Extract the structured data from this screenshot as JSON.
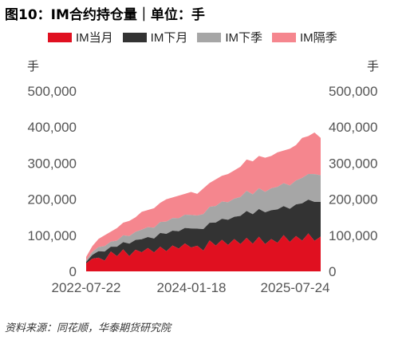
{
  "header": {
    "title": "图10：IM合约持仓量｜单位：手"
  },
  "footer": {
    "source": "资料来源：同花顺，华泰期货研究院"
  },
  "colors": {
    "current": "#e01020",
    "next": "#333333",
    "quarter": "#a6a6a6",
    "next_quarter": "#f5868e"
  },
  "chart_data": {
    "type": "area",
    "stacked": true,
    "title": "IM合约持仓量",
    "unit_left": "手",
    "unit_right": "手",
    "ylim": [
      0,
      500000
    ],
    "y_ticks": [
      "500,000",
      "400,000",
      "300,000",
      "200,000",
      "100,000",
      "0"
    ],
    "x_ticks": [
      "2022-07-22",
      "2024-01-18",
      "2025-07-24"
    ],
    "legend_position": "top",
    "grid": false,
    "series": [
      {
        "name": "IM当月",
        "color": "#e01020"
      },
      {
        "name": "IM下月",
        "color": "#333333"
      },
      {
        "name": "IM下季",
        "color": "#a6a6a6"
      },
      {
        "name": "IM隔季",
        "color": "#f5868e"
      }
    ],
    "x": [
      "2022-08",
      "2022-09",
      "2022-10",
      "2022-11",
      "2022-12",
      "2023-01",
      "2023-02",
      "2023-03",
      "2023-04",
      "2023-05",
      "2023-06",
      "2023-07",
      "2023-08",
      "2023-09",
      "2023-10",
      "2023-11",
      "2023-12",
      "2024-01",
      "2024-02",
      "2024-03",
      "2024-04",
      "2024-05",
      "2024-06",
      "2024-07",
      "2024-08",
      "2024-09",
      "2024-10",
      "2024-11",
      "2024-12",
      "2025-01",
      "2025-02",
      "2025-03",
      "2025-04",
      "2025-05",
      "2025-06",
      "2025-07",
      "2025-08",
      "2025-09",
      "2025-10"
    ],
    "totals": [
      40000,
      70000,
      90000,
      100000,
      110000,
      120000,
      135000,
      140000,
      150000,
      165000,
      170000,
      175000,
      190000,
      200000,
      205000,
      210000,
      215000,
      220000,
      215000,
      230000,
      245000,
      255000,
      265000,
      270000,
      280000,
      290000,
      310000,
      305000,
      320000,
      315000,
      320000,
      330000,
      335000,
      340000,
      350000,
      370000,
      375000,
      385000,
      370000
    ],
    "shares": {
      "IM当月": [
        0.55,
        0.5,
        0.42,
        0.3,
        0.5,
        0.35,
        0.45,
        0.3,
        0.4,
        0.32,
        0.38,
        0.3,
        0.36,
        0.28,
        0.35,
        0.3,
        0.36,
        0.3,
        0.33,
        0.25,
        0.35,
        0.28,
        0.33,
        0.27,
        0.32,
        0.26,
        0.3,
        0.25,
        0.3,
        0.24,
        0.28,
        0.24,
        0.3,
        0.24,
        0.28,
        0.23,
        0.28,
        0.22,
        0.26
      ],
      "IM下月": [
        0.1,
        0.15,
        0.2,
        0.25,
        0.12,
        0.22,
        0.15,
        0.25,
        0.18,
        0.22,
        0.18,
        0.22,
        0.2,
        0.24,
        0.2,
        0.23,
        0.2,
        0.24,
        0.22,
        0.26,
        0.2,
        0.25,
        0.22,
        0.26,
        0.22,
        0.27,
        0.24,
        0.27,
        0.24,
        0.28,
        0.25,
        0.28,
        0.24,
        0.27,
        0.25,
        0.28,
        0.25,
        0.28,
        0.26
      ],
      "IM下季": [
        0.1,
        0.12,
        0.13,
        0.15,
        0.13,
        0.14,
        0.14,
        0.15,
        0.15,
        0.16,
        0.16,
        0.17,
        0.16,
        0.17,
        0.17,
        0.17,
        0.17,
        0.17,
        0.17,
        0.18,
        0.18,
        0.18,
        0.18,
        0.18,
        0.18,
        0.18,
        0.18,
        0.18,
        0.18,
        0.18,
        0.19,
        0.19,
        0.19,
        0.19,
        0.19,
        0.19,
        0.19,
        0.2,
        0.2
      ]
    }
  }
}
